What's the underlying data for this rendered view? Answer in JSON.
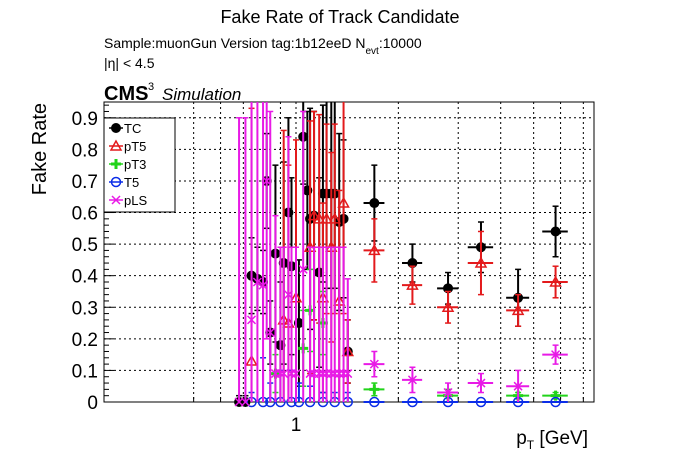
{
  "chart_data": {
    "type": "scatter",
    "title": "Fake Rate of Track Candidate",
    "subtitle": {
      "sample_prefix": "Sample:muonGun   Version tag:1b12eeD  N",
      "sample_sub": "evt",
      "sample_suffix": ":10000",
      "eta_cut": "|η| < 4.5"
    },
    "cms_label": "CMS",
    "simulation_label": "Simulation",
    "exponent_label": "3",
    "xlabel": {
      "main": "p",
      "sub": "T",
      "suffix": " [GeV]"
    },
    "ylabel": "Fake Rate",
    "x_scale": "log",
    "xlim": [
      0.5,
      50
    ],
    "ylim": [
      0,
      0.95
    ],
    "y_ticks": [
      "0",
      "0.1",
      "0.2",
      "0.3",
      "0.4",
      "0.5",
      "0.6",
      "0.7",
      "0.8",
      "0.9"
    ],
    "x_tick_labels": [
      "1"
    ],
    "grid": true,
    "legend_position": "top-left",
    "series": [
      {
        "name": "TC",
        "color": "#000000",
        "marker": "filled-circle",
        "points": [
          {
            "x": 0.68,
            "y": 0.0,
            "e": 0.02
          },
          {
            "x": 0.71,
            "y": 0.0,
            "e": 0.02
          },
          {
            "x": 0.74,
            "y": 0.4,
            "e": 0.12
          },
          {
            "x": 0.77,
            "y": 0.39,
            "e": 0.1
          },
          {
            "x": 0.8,
            "y": 0.38,
            "e": 0.1
          },
          {
            "x": 0.82,
            "y": 0.7,
            "e": 0.15
          },
          {
            "x": 0.84,
            "y": 0.22,
            "e": 0.1
          },
          {
            "x": 0.87,
            "y": 0.47,
            "e": 0.28
          },
          {
            "x": 0.9,
            "y": 0.18,
            "e": 0.2
          },
          {
            "x": 0.92,
            "y": 0.44,
            "e": 0.32
          },
          {
            "x": 0.95,
            "y": 0.6,
            "e": 0.3
          },
          {
            "x": 0.97,
            "y": 0.43,
            "e": 0.28
          },
          {
            "x": 1.02,
            "y": 0.25,
            "e": 0.2
          },
          {
            "x": 1.05,
            "y": 0.84,
            "e": 0.15
          },
          {
            "x": 1.08,
            "y": 0.67,
            "e": 0.25
          },
          {
            "x": 1.1,
            "y": 0.58,
            "e": 0.35
          },
          {
            "x": 1.13,
            "y": 0.59,
            "e": 0.33
          },
          {
            "x": 1.17,
            "y": 0.41,
            "e": 0.3
          },
          {
            "x": 1.2,
            "y": 0.66,
            "e": 0.28
          },
          {
            "x": 1.23,
            "y": 0.66,
            "e": 0.3
          },
          {
            "x": 1.27,
            "y": 0.66,
            "e": 0.3
          },
          {
            "x": 1.3,
            "y": 0.66,
            "e": 0.3
          },
          {
            "x": 1.34,
            "y": 0.57,
            "e": 0.28
          },
          {
            "x": 1.38,
            "y": 0.58,
            "e": 0.25
          },
          {
            "x": 1.42,
            "y": 0.16,
            "e": 0.1
          },
          {
            "x": 1.7,
            "y": 0.63,
            "e": 0.12,
            "xe": 0.12
          },
          {
            "x": 2.2,
            "y": 0.44,
            "e": 0.06,
            "xe": 0.15
          },
          {
            "x": 2.8,
            "y": 0.36,
            "e": 0.05,
            "xe": 0.2
          },
          {
            "x": 3.5,
            "y": 0.49,
            "e": 0.08,
            "xe": 0.3
          },
          {
            "x": 4.5,
            "y": 0.33,
            "e": 0.09,
            "xe": 0.35
          },
          {
            "x": 5.8,
            "y": 0.54,
            "e": 0.08,
            "xe": 0.5
          }
        ]
      },
      {
        "name": "pT5",
        "color": "#e31a1c",
        "marker": "open-triangle",
        "points": [
          {
            "x": 0.74,
            "y": 0.13,
            "e": 0.8
          },
          {
            "x": 0.92,
            "y": 0.26,
            "e": 0.6
          },
          {
            "x": 0.95,
            "y": 0.25,
            "e": 0.5
          },
          {
            "x": 1.0,
            "y": 0.33,
            "e": 0.5
          },
          {
            "x": 1.1,
            "y": 0.49,
            "e": 0.4
          },
          {
            "x": 1.13,
            "y": 0.59,
            "e": 0.33
          },
          {
            "x": 1.17,
            "y": 0.58,
            "e": 0.33
          },
          {
            "x": 1.2,
            "y": 0.33,
            "e": 0.3
          },
          {
            "x": 1.23,
            "y": 0.58,
            "e": 0.3
          },
          {
            "x": 1.27,
            "y": 0.49,
            "e": 0.3
          },
          {
            "x": 1.3,
            "y": 0.58,
            "e": 0.3
          },
          {
            "x": 1.34,
            "y": 0.32,
            "e": 0.35
          },
          {
            "x": 1.38,
            "y": 0.63,
            "e": 0.35
          },
          {
            "x": 1.42,
            "y": 0.16,
            "e": 0.1
          },
          {
            "x": 1.7,
            "y": 0.48,
            "e": 0.1,
            "xe": 0.12
          },
          {
            "x": 2.2,
            "y": 0.37,
            "e": 0.06,
            "xe": 0.15
          },
          {
            "x": 2.8,
            "y": 0.3,
            "e": 0.05,
            "xe": 0.2
          },
          {
            "x": 3.5,
            "y": 0.44,
            "e": 0.1,
            "xe": 0.3
          },
          {
            "x": 4.5,
            "y": 0.29,
            "e": 0.05,
            "xe": 0.35
          },
          {
            "x": 5.8,
            "y": 0.38,
            "e": 0.05,
            "xe": 0.5
          }
        ]
      },
      {
        "name": "pT3",
        "color": "#22d31a",
        "marker": "filled-cross",
        "points": [
          {
            "x": 0.87,
            "y": 0.09,
            "e": 0.06
          },
          {
            "x": 1.05,
            "y": 0.17,
            "e": 0.12
          },
          {
            "x": 1.1,
            "y": 0.29,
            "e": 0.13
          },
          {
            "x": 1.2,
            "y": 0.25,
            "e": 0.1
          },
          {
            "x": 1.7,
            "y": 0.04,
            "e": 0.02,
            "xe": 0.12
          },
          {
            "x": 2.8,
            "y": 0.02,
            "e": 0.02,
            "xe": 0.2
          },
          {
            "x": 4.5,
            "y": 0.02,
            "e": 0.01,
            "xe": 0.35
          },
          {
            "x": 5.8,
            "y": 0.02,
            "e": 0.01,
            "xe": 0.5
          }
        ]
      },
      {
        "name": "T5",
        "color": "#0b2de8",
        "marker": "open-circle",
        "points": [
          {
            "x": 0.74,
            "y": 0.0,
            "e": 0.03
          },
          {
            "x": 0.8,
            "y": 0.0,
            "e": 0.14
          },
          {
            "x": 0.84,
            "y": 0.0,
            "e": 0.06
          },
          {
            "x": 0.9,
            "y": 0.0,
            "e": 0.1
          },
          {
            "x": 0.97,
            "y": 0.0,
            "e": 0.1
          },
          {
            "x": 1.02,
            "y": 0.0,
            "e": 0.06
          },
          {
            "x": 1.1,
            "y": 0.0,
            "e": 0.05
          },
          {
            "x": 1.2,
            "y": 0.0,
            "e": 0.03
          },
          {
            "x": 1.3,
            "y": 0.0,
            "e": 0.03
          },
          {
            "x": 1.42,
            "y": 0.0,
            "e": 0.03
          },
          {
            "x": 1.7,
            "y": 0.0,
            "e": 0.0,
            "xe": 0.12
          },
          {
            "x": 2.2,
            "y": 0.0,
            "e": 0.0,
            "xe": 0.15
          },
          {
            "x": 2.8,
            "y": 0.0,
            "e": 0.0,
            "xe": 0.2
          },
          {
            "x": 3.5,
            "y": 0.0,
            "e": 0.0,
            "xe": 0.3
          },
          {
            "x": 4.5,
            "y": 0.0,
            "e": 0.0,
            "xe": 0.35
          },
          {
            "x": 5.8,
            "y": 0.0,
            "e": 0.0,
            "xe": 0.5
          }
        ]
      },
      {
        "name": "pLS",
        "color": "#e81ae6",
        "marker": "open-star",
        "points": [
          {
            "x": 0.68,
            "y": 0.0,
            "e": 0.9
          },
          {
            "x": 0.71,
            "y": 0.0,
            "e": 0.9
          },
          {
            "x": 0.74,
            "y": 0.26,
            "e": 0.7
          },
          {
            "x": 0.77,
            "y": 0.38,
            "e": 0.6
          },
          {
            "x": 0.8,
            "y": 0.37,
            "e": 0.6
          },
          {
            "x": 0.82,
            "y": 0.7,
            "e": 0.5
          },
          {
            "x": 0.84,
            "y": 0.22,
            "e": 0.7
          },
          {
            "x": 0.87,
            "y": 0.09,
            "e": 0.5
          },
          {
            "x": 0.9,
            "y": 0.09,
            "e": 0.4
          },
          {
            "x": 0.92,
            "y": 0.09,
            "e": 0.4
          },
          {
            "x": 0.95,
            "y": 0.34,
            "e": 0.5
          },
          {
            "x": 0.97,
            "y": 0.09,
            "e": 0.4
          },
          {
            "x": 1.0,
            "y": 0.09,
            "e": 0.4
          },
          {
            "x": 1.05,
            "y": 0.42,
            "e": 0.5
          },
          {
            "x": 1.1,
            "y": 0.09,
            "e": 0.4
          },
          {
            "x": 1.13,
            "y": 0.09,
            "e": 0.4
          },
          {
            "x": 1.17,
            "y": 0.09,
            "e": 0.4
          },
          {
            "x": 1.2,
            "y": 0.09,
            "e": 0.4
          },
          {
            "x": 1.23,
            "y": 0.09,
            "e": 0.4
          },
          {
            "x": 1.27,
            "y": 0.09,
            "e": 0.4
          },
          {
            "x": 1.3,
            "y": 0.09,
            "e": 0.4
          },
          {
            "x": 1.34,
            "y": 0.09,
            "e": 0.4
          },
          {
            "x": 1.38,
            "y": 0.09,
            "e": 0.4
          },
          {
            "x": 1.42,
            "y": 0.09,
            "e": 0.3
          },
          {
            "x": 1.7,
            "y": 0.12,
            "e": 0.04,
            "xe": 0.12
          },
          {
            "x": 2.2,
            "y": 0.07,
            "e": 0.04,
            "xe": 0.15
          },
          {
            "x": 2.8,
            "y": 0.03,
            "e": 0.03,
            "xe": 0.2
          },
          {
            "x": 3.5,
            "y": 0.06,
            "e": 0.03,
            "xe": 0.3
          },
          {
            "x": 4.5,
            "y": 0.05,
            "e": 0.05,
            "xe": 0.35
          },
          {
            "x": 5.8,
            "y": 0.15,
            "e": 0.03,
            "xe": 0.5
          }
        ]
      }
    ]
  }
}
